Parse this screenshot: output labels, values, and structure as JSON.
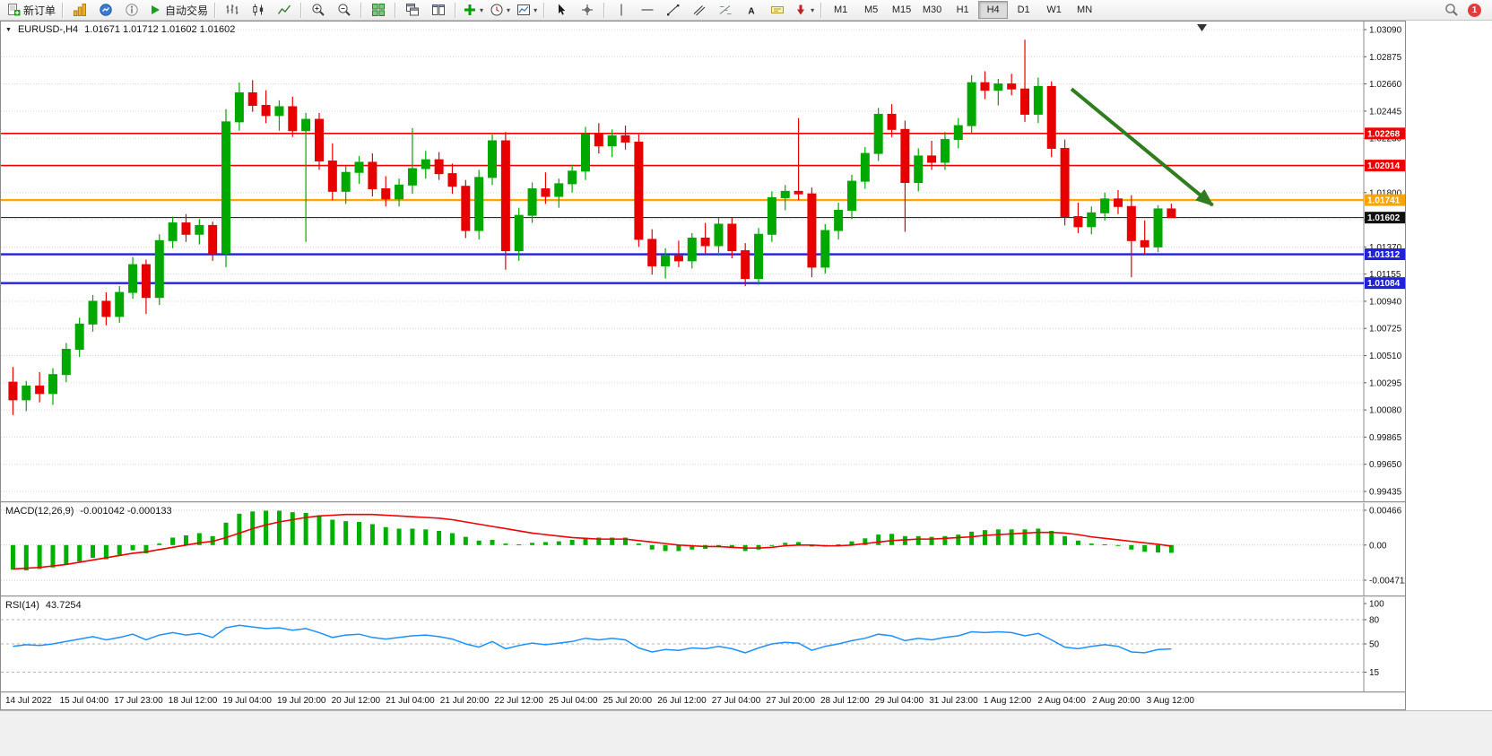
{
  "toolbar": {
    "new_order_label": "新订单",
    "auto_trading_label": "自动交易",
    "text_tool_label": "A",
    "timeframes": [
      "M1",
      "M5",
      "M15",
      "M30",
      "H1",
      "H4",
      "D1",
      "W1",
      "MN"
    ],
    "active_timeframe": "H4",
    "notification_count": "1"
  },
  "chart_title": {
    "symbol_period": "EURUSD-,H4",
    "ohlc": "1.01671 1.01712 1.01602 1.01602"
  },
  "chart_data": {
    "type": "candlestick",
    "symbol": "EURUSD-",
    "timeframe": "H4",
    "current_open": 1.01671,
    "current_high": 1.01712,
    "current_low": 1.01602,
    "current_close": 1.01602,
    "colors": {
      "bull": "#00a800",
      "bear": "#e60000"
    },
    "price_axis": {
      "max": 1.0309,
      "min": 0.99435,
      "ticks": [
        "1.03090",
        "1.02875",
        "1.02660",
        "1.02445",
        "1.02230",
        "1.02015",
        "1.01800",
        "1.01585",
        "1.01370",
        "1.01155",
        "1.00940",
        "1.00725",
        "1.00510",
        "1.00295",
        "1.00080",
        "0.99865",
        "0.99650",
        "0.99435"
      ]
    },
    "levels": [
      {
        "price": 1.02268,
        "label": "1.02268",
        "color": "#ee0000",
        "width": 1.6
      },
      {
        "price": 1.02014,
        "label": "1.02014",
        "color": "#ee0000",
        "width": 1.6
      },
      {
        "price": 1.01741,
        "label": "1.01741",
        "color": "#ffa400",
        "width": 2.4
      },
      {
        "price": 1.01602,
        "label": "1.01602",
        "color": "#111111",
        "width": 1
      },
      {
        "price": 1.01312,
        "label": "1.01312",
        "color": "#2121dd",
        "width": 2.4
      },
      {
        "price": 1.01084,
        "label": "1.01084",
        "color": "#2121dd",
        "width": 2.4
      }
    ],
    "trend_arrow": {
      "from_bar": 80,
      "from_price": 1.0262,
      "to_bar": 90.6,
      "to_price": 1.017,
      "color": "#2f7d1f"
    },
    "candles": [
      [
        1.003,
        1.0042,
        1.0004,
        1.0016
      ],
      [
        1.0016,
        1.0031,
        1.0007,
        1.0027
      ],
      [
        1.0027,
        1.0038,
        1.0014,
        1.0021
      ],
      [
        1.0021,
        1.0041,
        1.0012,
        1.0036
      ],
      [
        1.0036,
        1.0061,
        1.003,
        1.0056
      ],
      [
        1.0056,
        1.0081,
        1.005,
        1.0076
      ],
      [
        1.0076,
        1.0099,
        1.007,
        1.0094
      ],
      [
        1.0094,
        1.0101,
        1.0075,
        1.0082
      ],
      [
        1.0082,
        1.0106,
        1.0077,
        1.0101
      ],
      [
        1.0101,
        1.0129,
        1.0096,
        1.0123
      ],
      [
        1.0123,
        1.0127,
        1.0084,
        1.0097
      ],
      [
        1.0097,
        1.0147,
        1.0091,
        1.0142
      ],
      [
        1.0142,
        1.0161,
        1.0136,
        1.0156
      ],
      [
        1.0156,
        1.0163,
        1.0141,
        1.0147
      ],
      [
        1.0147,
        1.0159,
        1.0139,
        1.0154
      ],
      [
        1.0154,
        1.0157,
        1.0126,
        1.0132
      ],
      [
        1.0132,
        1.0246,
        1.0121,
        1.0236
      ],
      [
        1.0236,
        1.0267,
        1.0229,
        1.0259
      ],
      [
        1.0259,
        1.0269,
        1.0244,
        1.0249
      ],
      [
        1.0249,
        1.0261,
        1.0235,
        1.0241
      ],
      [
        1.0241,
        1.0253,
        1.0229,
        1.0248
      ],
      [
        1.0248,
        1.0256,
        1.0224,
        1.0229
      ],
      [
        1.0229,
        1.0243,
        1.0141,
        1.0238
      ],
      [
        1.0238,
        1.0243,
        1.0198,
        1.0205
      ],
      [
        1.0205,
        1.0219,
        1.0174,
        1.0181
      ],
      [
        1.0181,
        1.0201,
        1.0171,
        1.0196
      ],
      [
        1.0196,
        1.0209,
        1.0187,
        1.0204
      ],
      [
        1.0204,
        1.0211,
        1.0177,
        1.0183
      ],
      [
        1.0183,
        1.0193,
        1.0169,
        1.0175
      ],
      [
        1.0175,
        1.0191,
        1.0169,
        1.0186
      ],
      [
        1.0186,
        1.0231,
        1.0179,
        1.0199
      ],
      [
        1.0199,
        1.0213,
        1.0191,
        1.0206
      ],
      [
        1.0206,
        1.0212,
        1.019,
        1.0195
      ],
      [
        1.0195,
        1.0203,
        1.0179,
        1.0185
      ],
      [
        1.0185,
        1.019,
        1.0144,
        1.015
      ],
      [
        1.015,
        1.0198,
        1.0143,
        1.0192
      ],
      [
        1.0192,
        1.0226,
        1.0186,
        1.0221
      ],
      [
        1.0221,
        1.0228,
        1.0119,
        1.0134
      ],
      [
        1.0134,
        1.0168,
        1.0126,
        1.0162
      ],
      [
        1.0162,
        1.0188,
        1.0156,
        1.0183
      ],
      [
        1.0183,
        1.0196,
        1.0171,
        1.0177
      ],
      [
        1.0177,
        1.0191,
        1.0168,
        1.0187
      ],
      [
        1.0187,
        1.0202,
        1.018,
        1.0197
      ],
      [
        1.0197,
        1.0232,
        1.019,
        1.0226
      ],
      [
        1.0226,
        1.0235,
        1.0211,
        1.0217
      ],
      [
        1.0217,
        1.023,
        1.0208,
        1.0225
      ],
      [
        1.0225,
        1.0233,
        1.0214,
        1.022
      ],
      [
        1.022,
        1.0226,
        1.0137,
        1.0143
      ],
      [
        1.0143,
        1.0151,
        1.0115,
        1.0122
      ],
      [
        1.0122,
        1.0136,
        1.0112,
        1.013
      ],
      [
        1.013,
        1.0142,
        1.0121,
        1.0126
      ],
      [
        1.0126,
        1.0148,
        1.012,
        1.0144
      ],
      [
        1.0144,
        1.0156,
        1.0132,
        1.0138
      ],
      [
        1.0138,
        1.016,
        1.013,
        1.0155
      ],
      [
        1.0155,
        1.016,
        1.0128,
        1.0134
      ],
      [
        1.0134,
        1.014,
        1.0106,
        1.0112
      ],
      [
        1.0112,
        1.0152,
        1.0107,
        1.0147
      ],
      [
        1.0147,
        1.0181,
        1.0141,
        1.0176
      ],
      [
        1.0176,
        1.0186,
        1.0166,
        1.0181
      ],
      [
        1.0181,
        1.0239,
        1.0174,
        1.0179
      ],
      [
        1.0179,
        1.0184,
        1.0113,
        1.0121
      ],
      [
        1.0121,
        1.0155,
        1.0116,
        1.015
      ],
      [
        1.015,
        1.0172,
        1.0143,
        1.0166
      ],
      [
        1.0166,
        1.0194,
        1.0159,
        1.0189
      ],
      [
        1.0189,
        1.0216,
        1.0183,
        1.0211
      ],
      [
        1.0211,
        1.0247,
        1.0205,
        1.0242
      ],
      [
        1.0242,
        1.025,
        1.0224,
        1.023
      ],
      [
        1.023,
        1.0237,
        1.0149,
        1.0188
      ],
      [
        1.0188,
        1.0215,
        1.0181,
        1.0209
      ],
      [
        1.0209,
        1.0221,
        1.0198,
        1.0204
      ],
      [
        1.0204,
        1.0228,
        1.0198,
        1.0222
      ],
      [
        1.0222,
        1.0239,
        1.0215,
        1.0233
      ],
      [
        1.0233,
        1.0273,
        1.0227,
        1.0267
      ],
      [
        1.0267,
        1.0276,
        1.0254,
        1.0261
      ],
      [
        1.0261,
        1.027,
        1.0249,
        1.0266
      ],
      [
        1.0266,
        1.0274,
        1.0257,
        1.0262
      ],
      [
        1.0262,
        1.0301,
        1.0236,
        1.0242
      ],
      [
        1.0242,
        1.0271,
        1.0235,
        1.0264
      ],
      [
        1.0264,
        1.0268,
        1.0208,
        1.0215
      ],
      [
        1.0215,
        1.0222,
        1.0154,
        1.0161
      ],
      [
        1.0161,
        1.0172,
        1.0148,
        1.0153
      ],
      [
        1.0153,
        1.0169,
        1.0147,
        1.0164
      ],
      [
        1.0164,
        1.018,
        1.0158,
        1.0175
      ],
      [
        1.0175,
        1.0182,
        1.0163,
        1.0169
      ],
      [
        1.0169,
        1.0178,
        1.0113,
        1.0142
      ],
      [
        1.0142,
        1.0158,
        1.0131,
        1.0137
      ],
      [
        1.0137,
        1.017,
        1.0133,
        1.01671
      ],
      [
        1.01671,
        1.01712,
        1.01602,
        1.01602
      ]
    ],
    "time_labels": [
      "14 Jul 2022",
      "15 Jul 04:00",
      "17 Jul 23:00",
      "18 Jul 12:00",
      "19 Jul 04:00",
      "19 Jul 20:00",
      "20 Jul 12:00",
      "21 Jul 04:00",
      "21 Jul 20:00",
      "22 Jul 12:00",
      "25 Jul 04:00",
      "25 Jul 20:00",
      "26 Jul 12:00",
      "27 Jul 04:00",
      "27 Jul 20:00",
      "28 Jul 12:00",
      "29 Jul 04:00",
      "31 Jul 23:00",
      "1 Aug 12:00",
      "2 Aug 04:00",
      "2 Aug 20:00",
      "3 Aug 12:00"
    ],
    "macd": {
      "label": "MACD(12,26,9)",
      "values_label": "-0.001042 -0.000133",
      "scale_max": 0.00466,
      "scale_min": -0.004711,
      "axis": [
        "0.00466",
        "0.00",
        "-0.004711"
      ],
      "colors": {
        "histogram": "#00b000",
        "signal": "#f00000"
      },
      "histogram": [
        -0.0033,
        -0.0034,
        -0.0032,
        -0.003,
        -0.0026,
        -0.0022,
        -0.0017,
        -0.0019,
        -0.0013,
        -0.0007,
        -0.0011,
        0.0002,
        0.001,
        0.0013,
        0.0016,
        0.0012,
        0.003,
        0.0042,
        0.0045,
        0.0046,
        0.0046,
        0.0044,
        0.0043,
        0.004,
        0.0034,
        0.0032,
        0.0031,
        0.0028,
        0.0024,
        0.0022,
        0.0022,
        0.0021,
        0.0019,
        0.0016,
        0.0011,
        0.0006,
        0.0007,
        0.0002,
        0.0001,
        0.0003,
        0.0004,
        0.0005,
        0.0007,
        0.001,
        0.001,
        0.001,
        0.001,
        0.0002,
        -0.0006,
        -0.0008,
        -0.0008,
        -0.0006,
        -0.0005,
        -0.0003,
        -0.0004,
        -0.0008,
        -0.0006,
        -0.0001,
        0.0003,
        0.0004,
        -0.0002,
        -0.0002,
        0.0001,
        0.0005,
        0.0009,
        0.0014,
        0.0015,
        0.0012,
        0.0012,
        0.0011,
        0.0012,
        0.0014,
        0.0018,
        0.002,
        0.0021,
        0.0021,
        0.0021,
        0.0022,
        0.0019,
        0.0012,
        0.0006,
        0.0002,
        0.0001,
        0.0,
        -0.0006,
        -0.0009,
        -0.001,
        -0.001042
      ],
      "signal": [
        -0.0032,
        -0.0031,
        -0.003,
        -0.0028,
        -0.0026,
        -0.0023,
        -0.002,
        -0.0017,
        -0.0014,
        -0.0011,
        -0.0009,
        -0.0006,
        -0.0003,
        0.0,
        0.0003,
        0.0005,
        0.001,
        0.0016,
        0.0022,
        0.0027,
        0.0031,
        0.0034,
        0.0037,
        0.0039,
        0.004,
        0.0041,
        0.0041,
        0.0041,
        0.004,
        0.0039,
        0.0038,
        0.0037,
        0.0036,
        0.0034,
        0.0031,
        0.0028,
        0.0025,
        0.0022,
        0.0019,
        0.0016,
        0.0014,
        0.0012,
        0.001,
        0.0009,
        0.0008,
        0.0008,
        0.0008,
        0.0006,
        0.0004,
        0.0002,
        0.0,
        -0.0001,
        -0.0002,
        -0.0002,
        -0.0003,
        -0.0004,
        -0.0004,
        -0.0003,
        -0.0001,
        0.0,
        0.0,
        -0.0001,
        -0.0001,
        0.0,
        0.0002,
        0.0004,
        0.0006,
        0.0007,
        0.0008,
        0.0008,
        0.0009,
        0.001,
        0.0011,
        0.0013,
        0.0014,
        0.0015,
        0.0016,
        0.0017,
        0.0017,
        0.0016,
        0.0014,
        0.0011,
        0.0009,
        0.0007,
        0.0005,
        0.0003,
        0.0001,
        -0.000133
      ]
    },
    "rsi": {
      "label": "RSI(14)",
      "value_label": "43.7254",
      "color": "#1e90ff",
      "axis": [
        "100",
        "80",
        "50",
        "15"
      ],
      "levels": [
        80,
        50,
        15
      ],
      "values": [
        47,
        49,
        48,
        50,
        53,
        56,
        59,
        55,
        58,
        62,
        55,
        61,
        64,
        61,
        63,
        58,
        70,
        73,
        71,
        69,
        70,
        67,
        69,
        64,
        58,
        61,
        62,
        58,
        56,
        58,
        60,
        61,
        59,
        56,
        50,
        46,
        53,
        44,
        48,
        51,
        49,
        51,
        53,
        57,
        55,
        57,
        55,
        45,
        40,
        43,
        42,
        45,
        44,
        47,
        44,
        39,
        45,
        50,
        52,
        51,
        42,
        47,
        50,
        54,
        57,
        62,
        60,
        54,
        57,
        55,
        58,
        60,
        65,
        64,
        65,
        64,
        60,
        63,
        55,
        46,
        44,
        47,
        49,
        47,
        40,
        39,
        43,
        43.7254
      ]
    }
  }
}
